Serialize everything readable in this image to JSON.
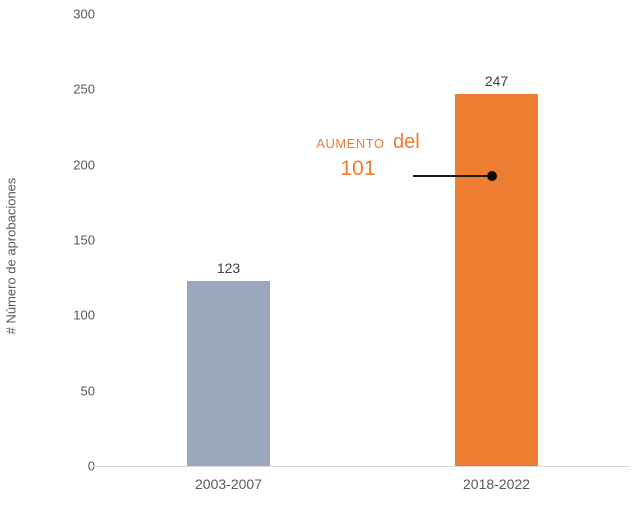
{
  "chart_data": {
    "type": "bar",
    "title": "",
    "categories": [
      "2003-2007",
      "2018-2022"
    ],
    "values": [
      123,
      247
    ],
    "value_labels": [
      "123",
      "247"
    ],
    "bar_colors": [
      "#9aa8be",
      "#ed7d31"
    ],
    "xlabel": "",
    "ylabel": "# Número de aprobaciones",
    "yticks": [
      0,
      50,
      100,
      150,
      200,
      250,
      300
    ],
    "ylim": [
      0,
      300
    ],
    "grid": false,
    "legend_position": "none",
    "annotation": {
      "word_small": "AUMENTO",
      "word_large": "del",
      "value": "101",
      "color": "#ed7d31",
      "callout": "black leader line with filled dot pointing to the 2018-2022 bar"
    }
  },
  "colors": {
    "background": "#ffffff",
    "axis_line": "#d9d9d9",
    "tick_text": "#595959",
    "value_text": "#404040",
    "category_text": "#595959",
    "leader_line": "#1a1a1a",
    "leader_dot": "#0d0d0d"
  }
}
